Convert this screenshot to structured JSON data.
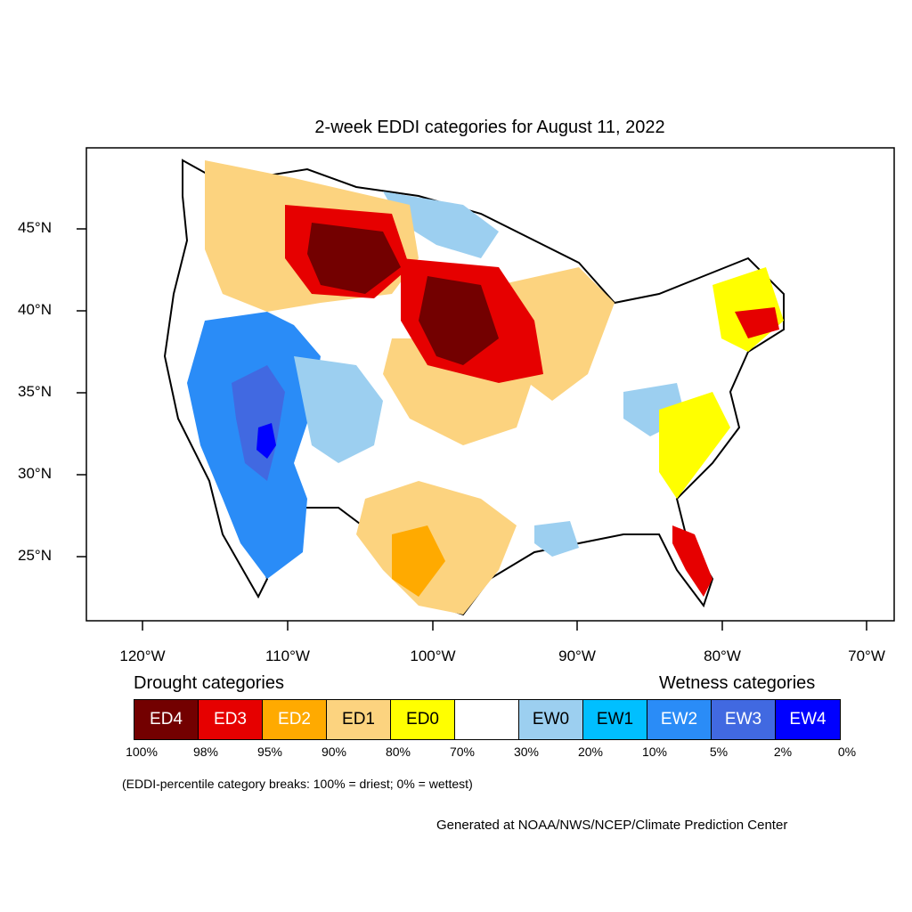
{
  "title": "2-week EDDI categories for August 11, 2022",
  "lat_labels": [
    "45°N",
    "40°N",
    "35°N",
    "30°N",
    "25°N"
  ],
  "lon_labels": [
    "120°W",
    "110°W",
    "100°W",
    "90°W",
    "80°W",
    "70°W"
  ],
  "drought_heading": "Drought categories",
  "wetness_heading": "Wetness categories",
  "categories": [
    {
      "label": "ED4",
      "color": "#730000",
      "text_color": "#ffffff"
    },
    {
      "label": "ED3",
      "color": "#e60000",
      "text_color": "#ffffff"
    },
    {
      "label": "ED2",
      "color": "#ffaa00",
      "text_color": "#ffffff"
    },
    {
      "label": "ED1",
      "color": "#fcd37f",
      "text_color": "#000000"
    },
    {
      "label": "ED0",
      "color": "#ffff00",
      "text_color": "#000000"
    },
    {
      "label": "",
      "color": "#ffffff",
      "text_color": "#000000"
    },
    {
      "label": "EW0",
      "color": "#9ccff0",
      "text_color": "#000000"
    },
    {
      "label": "EW1",
      "color": "#00bfff",
      "text_color": "#000000"
    },
    {
      "label": "EW2",
      "color": "#2a8cf7",
      "text_color": "#ffffff"
    },
    {
      "label": "EW3",
      "color": "#4169e1",
      "text_color": "#ffffff"
    },
    {
      "label": "EW4",
      "color": "#0000ff",
      "text_color": "#ffffff"
    }
  ],
  "percent_breaks": [
    "100%",
    "98%",
    "95%",
    "90%",
    "80%",
    "70%",
    "30%",
    "20%",
    "10%",
    "5%",
    "2%",
    "0%"
  ],
  "note": "(EDDI-percentile category breaks: 100% = driest; 0% = wettest)",
  "credit": "Generated at NOAA/NWS/NCEP/Climate Prediction Center"
}
